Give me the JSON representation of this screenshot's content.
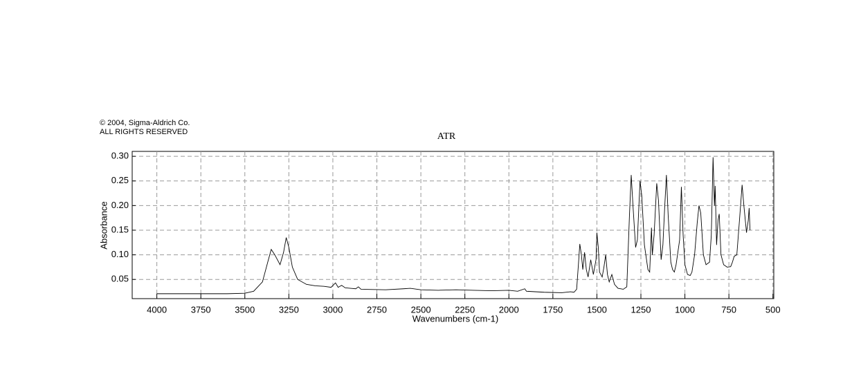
{
  "chart_data": {
    "type": "line",
    "copyright": "© 2004, Sigma-Aldrich Co.",
    "rights": "ALL RIGHTS RESERVED",
    "title": "ATR",
    "xlabel": "Wavenumbers (cm-1)",
    "ylabel": "Absorbance",
    "xlim": [
      4140,
      495
    ],
    "ylim": [
      0.011,
      0.31
    ],
    "xticks": [
      4000,
      3750,
      3500,
      3250,
      3000,
      2750,
      2500,
      2250,
      2000,
      1750,
      1500,
      1250,
      1000,
      750,
      500
    ],
    "yticks": [
      0.05,
      {
        "value": 0.1,
        "label": "0.10"
      },
      0.15,
      {
        "value": 0.2,
        "label": "0.20"
      },
      0.25,
      {
        "value": 0.3,
        "label": "0.30"
      }
    ],
    "grid": true,
    "color": "#000000",
    "x": [
      4000,
      3800,
      3600,
      3500,
      3450,
      3400,
      3370,
      3350,
      3330,
      3300,
      3280,
      3265,
      3250,
      3230,
      3200,
      3150,
      3100,
      3050,
      3010,
      2985,
      2970,
      2950,
      2930,
      2870,
      2855,
      2840,
      2700,
      2600,
      2560,
      2500,
      2400,
      2300,
      2200,
      2100,
      2000,
      1950,
      1910,
      1900,
      1800,
      1700,
      1650,
      1630,
      1615,
      1605,
      1597,
      1588,
      1580,
      1570,
      1560,
      1550,
      1535,
      1520,
      1505,
      1500,
      1492,
      1485,
      1470,
      1460,
      1450,
      1440,
      1430,
      1415,
      1400,
      1380,
      1350,
      1330,
      1315,
      1305,
      1295,
      1280,
      1270,
      1255,
      1245,
      1230,
      1210,
      1200,
      1190,
      1185,
      1175,
      1160,
      1150,
      1135,
      1125,
      1115,
      1105,
      1095,
      1080,
      1070,
      1060,
      1050,
      1030,
      1020,
      1010,
      1000,
      985,
      970,
      960,
      945,
      930,
      920,
      910,
      895,
      880,
      860,
      850,
      840,
      832,
      828,
      820,
      812,
      805,
      795,
      780,
      760,
      740,
      730,
      720,
      705,
      690,
      675,
      665,
      650,
      640,
      635,
      630
    ],
    "values": [
      0.021,
      0.021,
      0.021,
      0.022,
      0.026,
      0.045,
      0.085,
      0.111,
      0.1,
      0.08,
      0.105,
      0.135,
      0.115,
      0.075,
      0.05,
      0.04,
      0.037,
      0.036,
      0.034,
      0.043,
      0.034,
      0.038,
      0.033,
      0.031,
      0.035,
      0.03,
      0.029,
      0.031,
      0.032,
      0.029,
      0.028,
      0.029,
      0.028,
      0.027,
      0.028,
      0.026,
      0.031,
      0.026,
      0.024,
      0.023,
      0.025,
      0.024,
      0.03,
      0.08,
      0.122,
      0.1,
      0.07,
      0.105,
      0.07,
      0.055,
      0.09,
      0.06,
      0.09,
      0.145,
      0.115,
      0.065,
      0.055,
      0.075,
      0.1,
      0.06,
      0.045,
      0.06,
      0.04,
      0.032,
      0.03,
      0.035,
      0.18,
      0.262,
      0.2,
      0.115,
      0.13,
      0.25,
      0.22,
      0.12,
      0.07,
      0.065,
      0.155,
      0.1,
      0.14,
      0.245,
      0.21,
      0.09,
      0.12,
      0.195,
      0.262,
      0.18,
      0.085,
      0.07,
      0.065,
      0.08,
      0.13,
      0.238,
      0.14,
      0.08,
      0.06,
      0.058,
      0.065,
      0.1,
      0.165,
      0.2,
      0.185,
      0.1,
      0.08,
      0.085,
      0.14,
      0.298,
      0.2,
      0.24,
      0.12,
      0.17,
      0.183,
      0.1,
      0.08,
      0.075,
      0.076,
      0.085,
      0.097,
      0.1,
      0.17,
      0.242,
      0.2,
      0.145,
      0.17,
      0.195,
      0.15
    ]
  }
}
